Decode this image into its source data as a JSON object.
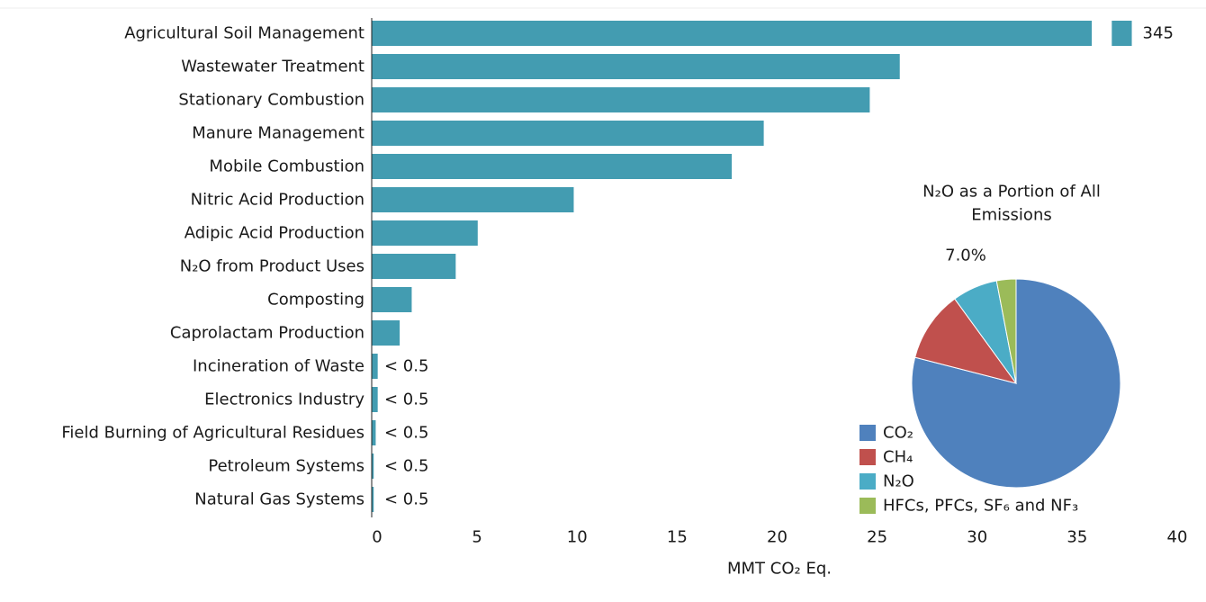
{
  "chart_data": [
    {
      "type": "bar",
      "orientation": "horizontal",
      "categories": [
        "Agricultural Soil Management",
        "Wastewater Treatment",
        "Stationary Combustion",
        "Manure Management",
        "Mobile Combustion",
        "Nitric Acid Production",
        "Adipic Acid Production",
        "N₂O from Product Uses",
        "Composting",
        "Caprolactam Production",
        "Incineration of Waste",
        "Electronics Industry",
        "Field Burning of Agricultural Residues",
        "Petroleum Systems",
        "Natural Gas Systems"
      ],
      "values": [
        345,
        26.4,
        24.9,
        19.6,
        18.0,
        10.1,
        5.3,
        4.2,
        2.0,
        1.4,
        0.3,
        0.3,
        0.2,
        0.1,
        0.1
      ],
      "data_labels": [
        "345",
        "",
        "",
        "",
        "",
        "",
        "",
        "",
        "",
        "",
        "< 0.5",
        "< 0.5",
        "< 0.5",
        "< 0.5",
        "< 0.5"
      ],
      "axis_break": true,
      "xlabel": "MMT CO₂ Eq.",
      "ylabel": "",
      "xlim": [
        0,
        40
      ],
      "xticks": [
        0,
        5,
        10,
        15,
        20,
        25,
        30,
        35,
        40
      ],
      "grid": false,
      "color": "#439cb1"
    },
    {
      "type": "pie",
      "title": "N₂O as a Portion of All Emissions",
      "labels": [
        "CO₂",
        "CH₄",
        "N₂O",
        "HFCs, PFCs, SF₆ and NF₃"
      ],
      "values": [
        79.0,
        11.0,
        7.0,
        3.0
      ],
      "colors": [
        "#4f81bd",
        "#c0504d",
        "#4bacc6",
        "#9bbb59"
      ],
      "annotation": "7.0%",
      "legend_position": "bottom-left"
    }
  ]
}
